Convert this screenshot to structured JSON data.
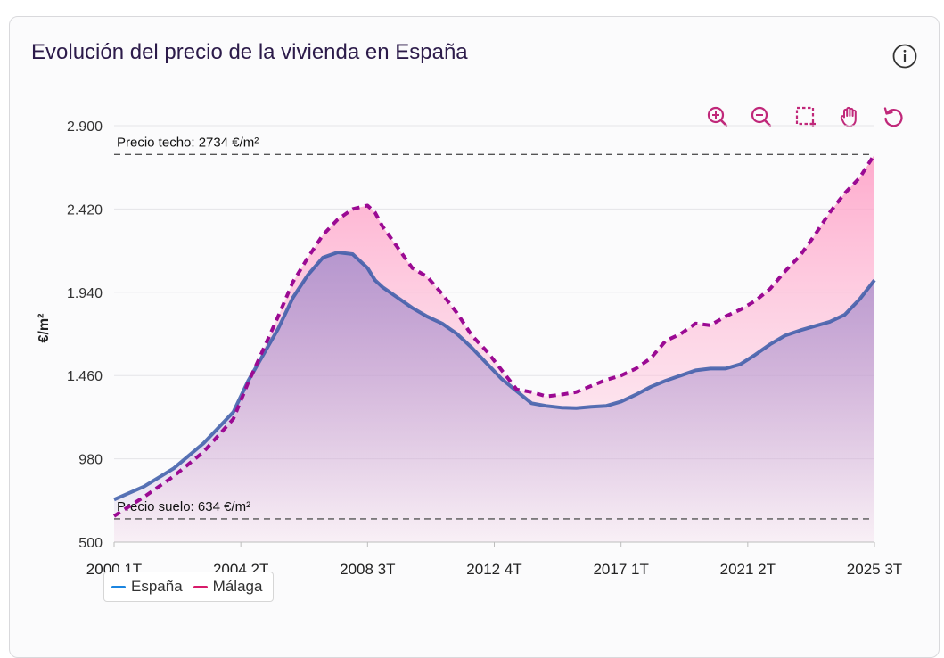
{
  "card": {
    "title": "Evolución del precio de la vivienda en España"
  },
  "toolbar": {
    "icons": [
      "zoom-in-icon",
      "zoom-out-icon",
      "selection-zoom-icon",
      "pan-hand-icon",
      "reset-icon"
    ]
  },
  "colors": {
    "accent": "#c0287a",
    "espana": "#3a5ba8",
    "espana_fill": "#a98fcc",
    "malaga": "#9b0a93",
    "malaga_fill": "#fcbfd6",
    "legend_espana": "#1b85e0",
    "legend_malaga": "#d81b6a",
    "title": "#2c1b4a"
  },
  "chart_data": {
    "type": "area",
    "title": "Evolución del precio de la vivienda en España",
    "xlabel": "",
    "ylabel": "€/m²",
    "ylim": [
      500,
      2900
    ],
    "yticks": [
      500,
      980,
      1460,
      1940,
      2420,
      2900
    ],
    "ytick_labels": [
      "500",
      "980",
      "1.460",
      "1.940",
      "2.420",
      "2.900"
    ],
    "xtick_labels": [
      "2000 1T",
      "2004 2T",
      "2008 3T",
      "2012 4T",
      "2017 1T",
      "2021 2T",
      "2025 3T"
    ],
    "x_start": 2000.0,
    "x_end": 2025.5,
    "xtick_positions": [
      2000.0,
      2004.25,
      2008.5,
      2012.75,
      2017.0,
      2021.25,
      2025.5
    ],
    "reference_lines": [
      {
        "label": "Precio techo: 2734 €/m²",
        "value": 2734
      },
      {
        "label": "Precio suelo: 634 €/m²",
        "value": 634
      }
    ],
    "legend": [
      "España",
      "Málaga"
    ],
    "series": [
      {
        "name": "España",
        "x": [
          2000.0,
          2001.0,
          2002.0,
          2003.0,
          2004.0,
          2004.5,
          2005.0,
          2005.5,
          2006.0,
          2006.5,
          2007.0,
          2007.5,
          2008.0,
          2008.5,
          2008.75,
          2009.0,
          2009.5,
          2010.0,
          2010.5,
          2011.0,
          2011.5,
          2012.0,
          2012.5,
          2013.0,
          2013.5,
          2014.0,
          2014.5,
          2015.0,
          2015.5,
          2016.0,
          2016.5,
          2017.0,
          2017.5,
          2018.0,
          2018.5,
          2019.0,
          2019.5,
          2020.0,
          2020.5,
          2021.0,
          2021.5,
          2022.0,
          2022.5,
          2023.0,
          2023.5,
          2024.0,
          2024.5,
          2025.0,
          2025.5
        ],
        "values": [
          745,
          820,
          925,
          1070,
          1250,
          1430,
          1580,
          1730,
          1910,
          2040,
          2140,
          2170,
          2160,
          2080,
          2010,
          1970,
          1910,
          1850,
          1800,
          1760,
          1700,
          1620,
          1530,
          1440,
          1370,
          1300,
          1285,
          1275,
          1272,
          1280,
          1285,
          1310,
          1350,
          1395,
          1430,
          1460,
          1490,
          1500,
          1500,
          1525,
          1580,
          1640,
          1690,
          1720,
          1745,
          1770,
          1810,
          1900,
          2010
        ]
      },
      {
        "name": "Málaga",
        "x": [
          2000.0,
          2001.0,
          2002.0,
          2003.0,
          2004.0,
          2004.5,
          2005.0,
          2005.5,
          2006.0,
          2006.5,
          2007.0,
          2007.5,
          2008.0,
          2008.5,
          2008.75,
          2009.0,
          2009.5,
          2010.0,
          2010.5,
          2011.0,
          2011.5,
          2012.0,
          2012.5,
          2013.0,
          2013.5,
          2014.0,
          2014.5,
          2015.0,
          2015.5,
          2016.0,
          2016.5,
          2017.0,
          2017.5,
          2018.0,
          2018.5,
          2019.0,
          2019.5,
          2020.0,
          2020.5,
          2021.0,
          2021.5,
          2022.0,
          2022.5,
          2023.0,
          2023.5,
          2024.0,
          2024.5,
          2025.0,
          2025.5
        ],
        "values": [
          650,
          760,
          880,
          1020,
          1210,
          1420,
          1610,
          1800,
          2000,
          2140,
          2270,
          2360,
          2420,
          2440,
          2400,
          2320,
          2200,
          2080,
          2030,
          1930,
          1820,
          1690,
          1600,
          1490,
          1380,
          1365,
          1340,
          1350,
          1365,
          1400,
          1435,
          1460,
          1500,
          1560,
          1660,
          1700,
          1760,
          1750,
          1800,
          1840,
          1890,
          1960,
          2060,
          2150,
          2270,
          2400,
          2510,
          2600,
          2734
        ]
      }
    ]
  }
}
